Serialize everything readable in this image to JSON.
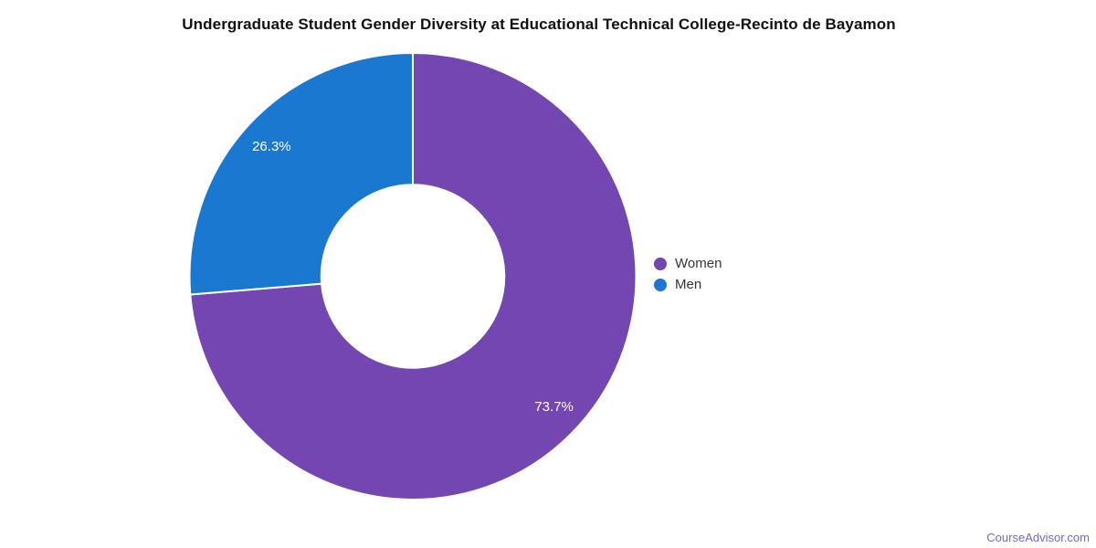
{
  "page": {
    "title": "Undergraduate Student Gender Diversity at Educational Technical College-Recinto de Bayamon",
    "footer": {
      "text": "CourseAdvisor.com",
      "color": "#7569b9"
    }
  },
  "chart_data": {
    "type": "pie",
    "subtype": "donut",
    "title": "Undergraduate Student Gender Diversity at Educational Technical College-Recinto de Bayamon",
    "series": [
      {
        "name": "Women",
        "value": 73.7,
        "label": "73.7%",
        "color": "#7346b1"
      },
      {
        "name": "Men",
        "value": 26.3,
        "label": "26.3%",
        "color": "#1b78d1"
      }
    ],
    "total": 100,
    "start_angle_deg": 0,
    "direction": "clockwise",
    "inner_radius_ratio": 0.41,
    "slice_border_color": "#ffffff",
    "data_label_color": "#ffffff",
    "legend": {
      "position": "right",
      "entries": [
        "Women",
        "Men"
      ]
    }
  }
}
